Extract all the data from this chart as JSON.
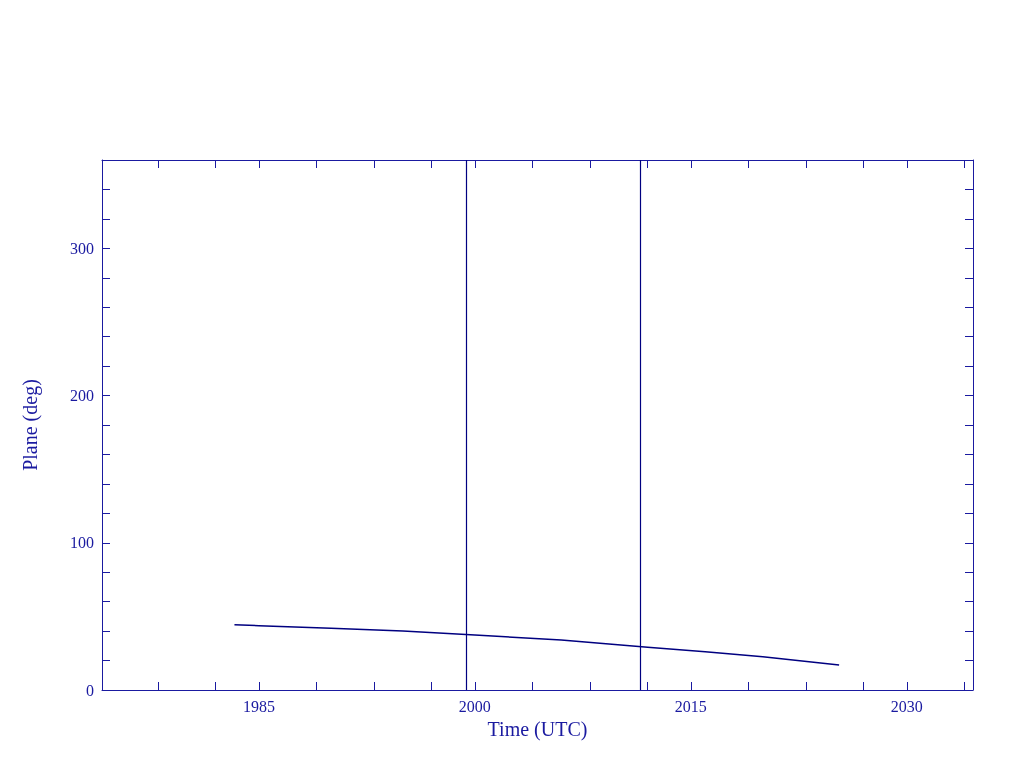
{
  "chart_data": {
    "type": "line",
    "xlabel": "Time (UTC)",
    "ylabel": "Plane (deg)",
    "x": [
      1983.3,
      1985,
      1990,
      1995,
      2000,
      2006,
      2012,
      2016,
      2020,
      2025.3
    ],
    "series": [
      {
        "color": "#000080",
        "values": [
          44.4,
          43.7,
          42,
          40,
          37.3,
          34,
          29,
          26,
          22.6,
          17
        ]
      }
    ],
    "xlim": [
      1974.1,
      2034.6
    ],
    "xticks": [
      {
        "value": 1978,
        "label": null
      },
      {
        "value": 1982,
        "label": null
      },
      1985,
      {
        "value": 1989,
        "label": null
      },
      {
        "value": 1993,
        "label": null
      },
      {
        "value": 1997,
        "label": null
      },
      2000,
      {
        "value": 2004,
        "label": null
      },
      {
        "value": 2008,
        "label": null
      },
      {
        "value": 2012,
        "label": null
      },
      2015,
      {
        "value": 2019,
        "label": null
      },
      {
        "value": 2023,
        "label": null
      },
      {
        "value": 2027,
        "label": null
      },
      2030,
      {
        "value": 2034,
        "label": null
      }
    ],
    "ylim": [
      0,
      360
    ],
    "yticks": [
      0,
      {
        "value": 20,
        "label": null
      },
      {
        "value": 40,
        "label": null
      },
      {
        "value": 60,
        "label": null
      },
      {
        "value": 80,
        "label": null
      },
      100,
      {
        "value": 120,
        "label": null
      },
      {
        "value": 140,
        "label": null
      },
      {
        "value": 160,
        "label": null
      },
      {
        "value": 180,
        "label": null
      },
      200,
      {
        "value": 220,
        "label": null
      },
      {
        "value": 240,
        "label": null
      },
      {
        "value": 260,
        "label": null
      },
      {
        "value": 280,
        "label": null
      },
      300,
      {
        "value": 320,
        "label": null
      },
      {
        "value": 340,
        "label": null
      }
    ],
    "ref_lines": [
      {
        "axis": "x",
        "value": 1999.4,
        "color": "#000080"
      },
      {
        "axis": "x",
        "value": 2011.5,
        "color": "#000080"
      }
    ],
    "grid": false,
    "marker": "none",
    "line_style": "solid"
  }
}
